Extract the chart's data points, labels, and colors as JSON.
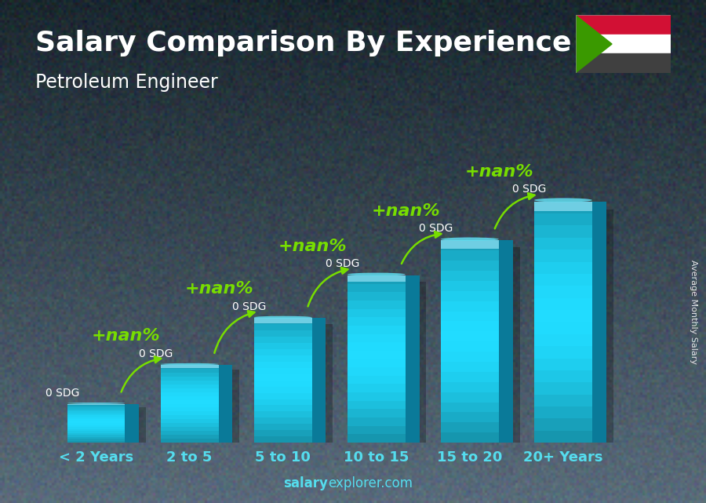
{
  "title": "Salary Comparison By Experience",
  "subtitle": "Petroleum Engineer",
  "categories": [
    "< 2 Years",
    "2 to 5",
    "5 to 10",
    "10 to 15",
    "15 to 20",
    "20+ Years"
  ],
  "bar_labels": [
    "0 SDG",
    "0 SDG",
    "0 SDG",
    "0 SDG",
    "0 SDG",
    "0 SDG"
  ],
  "pct_labels": [
    "+nan%",
    "+nan%",
    "+nan%",
    "+nan%",
    "+nan%"
  ],
  "title_color": "#ffffff",
  "subtitle_color": "#ffffff",
  "pct_color": "#77dd00",
  "bar_front_color": "#1ec8e8",
  "bar_side_color": "#0a7a99",
  "bar_top_color": "#60e0f8",
  "bar_shadow_color": "#0a5566",
  "footer_text": "salaryexplorer.com",
  "footer_salary": "Average Monthly Salary",
  "bg_top_color": "#4a6070",
  "bg_bottom_color": "#1a2a30",
  "title_fontsize": 26,
  "subtitle_fontsize": 17,
  "bar_label_fontsize": 10,
  "pct_label_fontsize": 16,
  "xtick_fontsize": 13,
  "footer_fontsize": 12,
  "bar_width": 0.62,
  "bar_depth": 0.15,
  "bar_heights": [
    1.0,
    2.0,
    3.2,
    4.3,
    5.2,
    6.2
  ],
  "ylim": [
    0,
    7.5
  ],
  "xlim": [
    -0.5,
    6.0
  ],
  "flag_colors": [
    "#d21034",
    "#ffffff",
    "#404040"
  ],
  "flag_triangle_color": "#3a9900"
}
